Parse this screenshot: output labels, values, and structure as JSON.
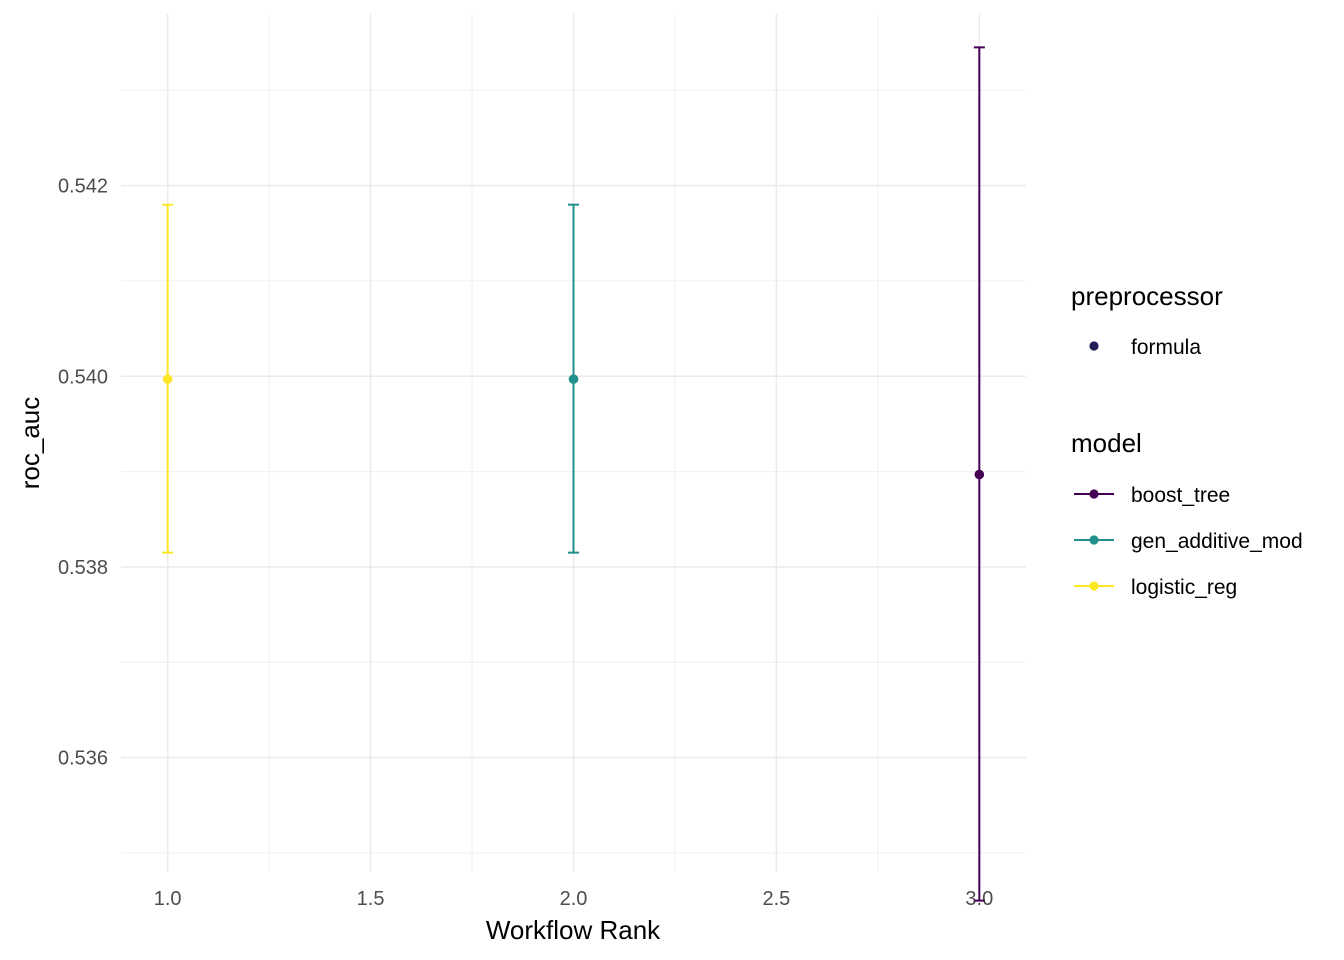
{
  "chart_data": {
    "type": "errorbar",
    "title": "",
    "xlabel": "Workflow Rank",
    "ylabel": "roc_auc",
    "xlim": [
      0.885,
      3.115
    ],
    "ylim": [
      0.5348,
      0.5438
    ],
    "x_ticks": [
      1.0,
      1.5,
      2.0,
      2.5,
      3.0
    ],
    "x_tick_labels": [
      "1.0",
      "1.5",
      "2.0",
      "2.5",
      "3.0"
    ],
    "y_ticks": [
      0.536,
      0.538,
      0.54,
      0.542
    ],
    "y_tick_labels": [
      "0.536",
      "0.538",
      "0.540",
      "0.542"
    ],
    "grid": true,
    "legend_position": "right",
    "series": [
      {
        "name": "logistic_reg",
        "color": "#FDE725",
        "x": 1,
        "y": 0.53997,
        "lower": 0.53815,
        "upper": 0.5418
      },
      {
        "name": "gen_additive_mod",
        "color": "#21908C",
        "x": 2,
        "y": 0.53997,
        "lower": 0.53815,
        "upper": 0.5418
      },
      {
        "name": "boost_tree",
        "color": "#440154",
        "x": 3,
        "y": 0.53897,
        "lower": 0.5345,
        "upper": 0.54345
      }
    ],
    "legend": {
      "preprocessor": {
        "title": "preprocessor",
        "items": [
          {
            "label": "formula",
            "color": "#1F1D5A"
          }
        ]
      },
      "model": {
        "title": "model",
        "items": [
          {
            "label": "boost_tree",
            "color": "#440154"
          },
          {
            "label": "gen_additive_mod",
            "color": "#21908C"
          },
          {
            "label": "logistic_reg",
            "color": "#FDE725"
          }
        ]
      }
    }
  }
}
